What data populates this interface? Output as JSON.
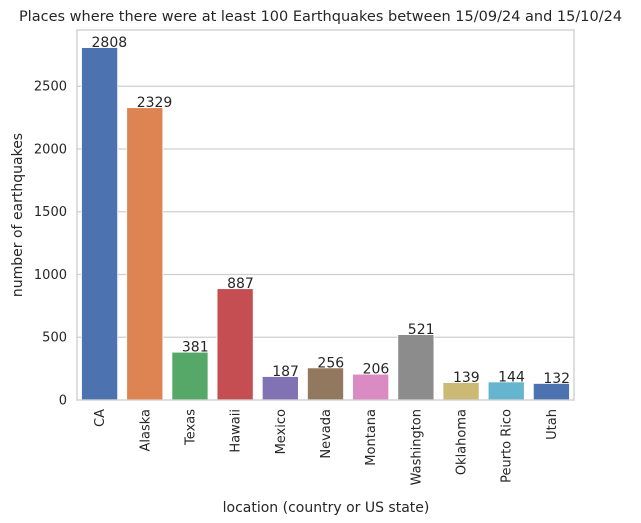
{
  "chart_data": {
    "type": "bar",
    "title": "Places where there were at least 100 Earthquakes between 15/09/24 and 15/10/24",
    "xlabel": "location (country or US state)",
    "ylabel": "number of earthquakes",
    "categories": [
      "CA",
      "Alaska",
      "Texas",
      "Hawaii",
      "Mexico",
      "Nevada",
      "Montana",
      "Washington",
      "Oklahoma",
      "Peurto Rico",
      "Utah"
    ],
    "values": [
      2808,
      2329,
      381,
      887,
      187,
      256,
      206,
      521,
      139,
      144,
      132
    ],
    "data_labels": [
      "2808",
      "2329",
      "381",
      "887",
      "187",
      "256",
      "206",
      "521",
      "139",
      "144",
      "132"
    ],
    "bar_colors": [
      "#4c72b0",
      "#dd8452",
      "#55a868",
      "#c44e52",
      "#8172b3",
      "#937860",
      "#da8bc3",
      "#8c8c8c",
      "#ccb974",
      "#64b5cd",
      "#4c72b0"
    ],
    "yticks": [
      0,
      500,
      1000,
      1500,
      2000,
      2500
    ],
    "ytick_labels": [
      "0",
      "500",
      "1000",
      "1500",
      "2000",
      "2500"
    ],
    "ylim": [
      0,
      2948
    ],
    "grid": "horizontal"
  }
}
